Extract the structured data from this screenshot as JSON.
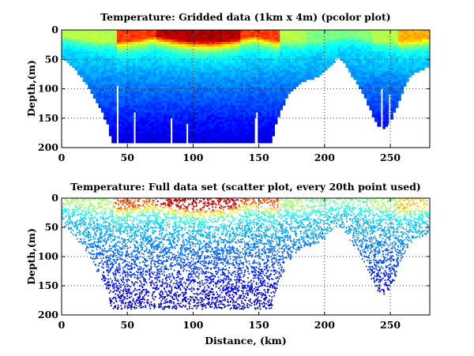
{
  "chart_data": [
    {
      "type": "heatmap",
      "title": "Temperature: Gridded data (1km x 4m) (pcolor plot)",
      "xlabel": "",
      "ylabel": "Depth,(m)",
      "xlim": [
        0,
        280
      ],
      "ylim": [
        200,
        0
      ],
      "y_reversed": true,
      "xticks": [
        0,
        50,
        100,
        150,
        200,
        250
      ],
      "yticks": [
        0,
        50,
        100,
        150,
        200
      ],
      "grid": "dotted",
      "colormap": "jet",
      "bottom_profile": {
        "x": [
          0,
          5,
          10,
          15,
          20,
          25,
          30,
          35,
          38,
          42,
          45,
          50,
          55,
          60,
          65,
          70,
          75,
          80,
          85,
          90,
          95,
          100,
          105,
          110,
          115,
          120,
          125,
          130,
          135,
          140,
          145,
          150,
          155,
          160,
          163,
          168,
          172,
          178,
          185,
          192,
          200,
          206,
          210,
          215,
          222,
          230,
          235,
          240,
          245,
          250,
          255,
          260,
          265,
          270,
          275,
          280
        ],
        "depth": [
          45,
          55,
          65,
          80,
          95,
          115,
          135,
          160,
          190,
          190,
          190,
          190,
          190,
          190,
          190,
          190,
          190,
          190,
          190,
          190,
          190,
          190,
          190,
          190,
          190,
          190,
          190,
          190,
          190,
          190,
          190,
          190,
          190,
          190,
          160,
          130,
          110,
          95,
          85,
          80,
          70,
          55,
          45,
          55,
          80,
          110,
          135,
          160,
          165,
          155,
          130,
          100,
          80,
          70,
          65,
          60
        ]
      },
      "temperature_range": [
        "cold",
        "warm"
      ]
    },
    {
      "type": "scatter",
      "title": "Temperature: Full data set (scatter plot, every 20th point used)",
      "xlabel": "Distance, (km)",
      "ylabel": "Depth,(m)",
      "xlim": [
        0,
        280
      ],
      "ylim": [
        200,
        0
      ],
      "y_reversed": true,
      "xticks": [
        0,
        50,
        100,
        150,
        200,
        250
      ],
      "yticks": [
        0,
        50,
        100,
        150,
        200
      ],
      "grid": "dotted",
      "colormap": "jet"
    }
  ]
}
